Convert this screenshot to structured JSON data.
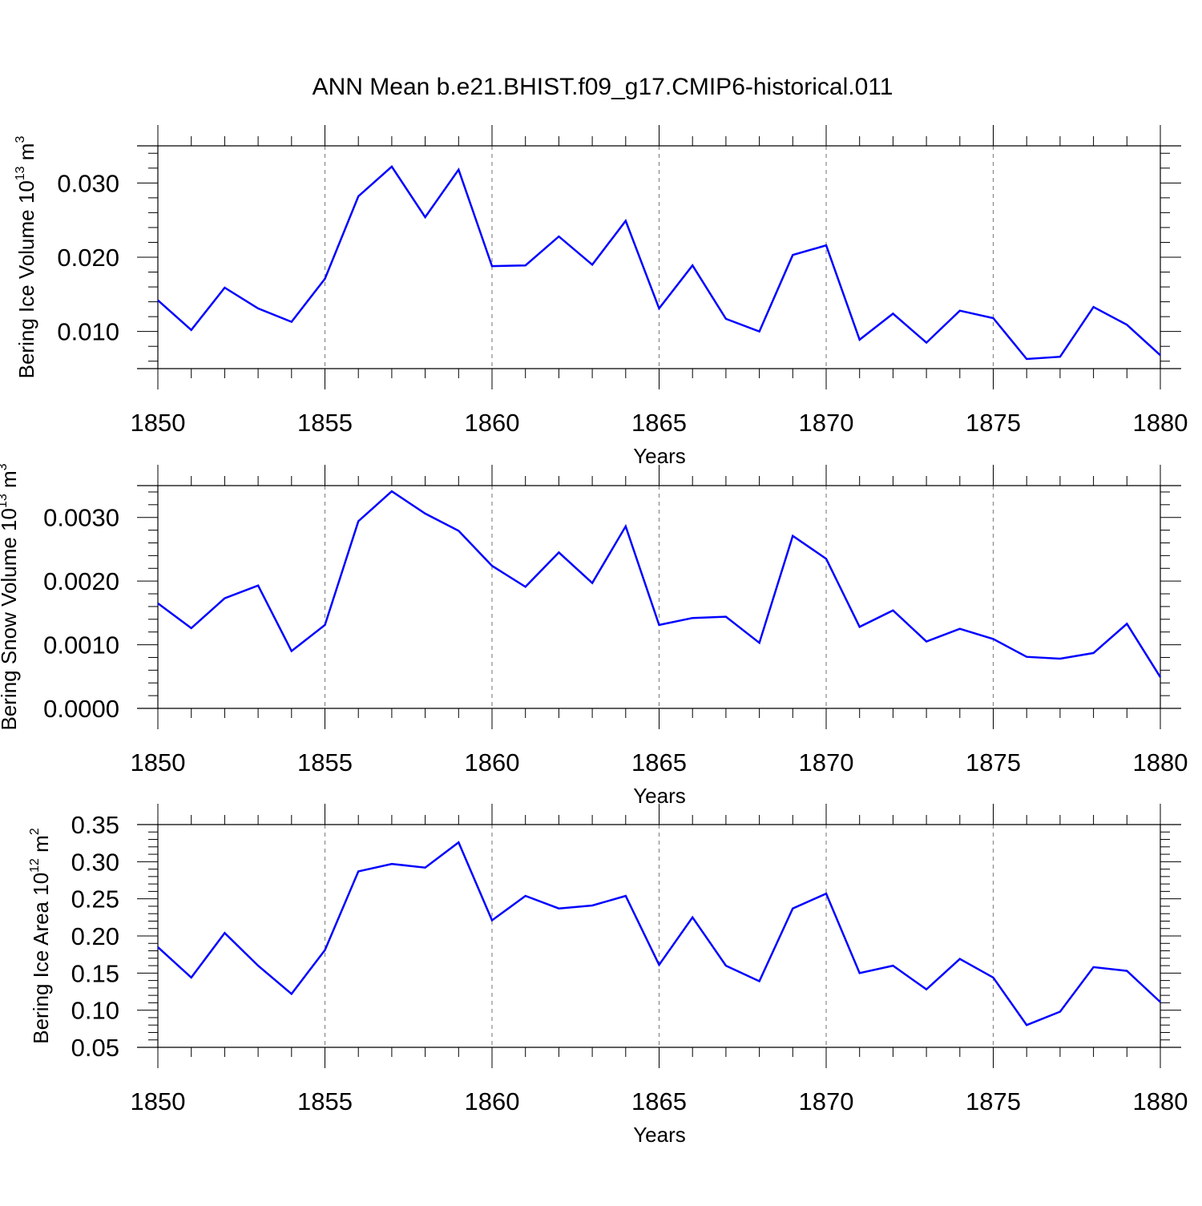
{
  "figure": {
    "title": "ANN Mean b.e21.BHIST.f09_g17.CMIP6-historical.011"
  },
  "colors": {
    "series": "#0000ff",
    "grid": "#888888",
    "frame": "#000000"
  },
  "chart_data": [
    {
      "type": "line",
      "title": "",
      "ylabel": "Bering Ice Volume 10",
      "ylabel_power": "13",
      "ylabel_unit": "m",
      "ylabel_unit_power": "3",
      "xlabel": "Years",
      "xlim": [
        1850,
        1880
      ],
      "ylim": [
        0.005,
        0.035
      ],
      "x_major_ticks": [
        1850,
        1855,
        1860,
        1865,
        1870,
        1875,
        1880
      ],
      "x_tick_labels": [
        "1850",
        "1855",
        "1860",
        "1865",
        "1870",
        "1875",
        "1880"
      ],
      "y_major_ticks": [
        0.01,
        0.02,
        0.03
      ],
      "y_tick_labels": [
        "0.010",
        "0.020",
        "0.030"
      ],
      "y_minor_step": 0.002,
      "vertical_grid": [
        1855,
        1860,
        1865,
        1870,
        1875
      ],
      "grid": "dashed vertical at labeled years",
      "x": [
        1850,
        1851,
        1852,
        1853,
        1854,
        1855,
        1856,
        1857,
        1858,
        1859,
        1860,
        1861,
        1862,
        1863,
        1864,
        1865,
        1866,
        1867,
        1868,
        1869,
        1870,
        1871,
        1872,
        1873,
        1874,
        1875,
        1876,
        1877,
        1878,
        1879,
        1880
      ],
      "series": [
        {
          "values": [
            0.0142,
            0.0102,
            0.0159,
            0.0131,
            0.0113,
            0.0171,
            0.0282,
            0.0322,
            0.0254,
            0.0318,
            0.0188,
            0.0189,
            0.0228,
            0.019,
            0.0249,
            0.0131,
            0.0189,
            0.0117,
            0.01,
            0.0203,
            0.0216,
            0.0089,
            0.0124,
            0.0085,
            0.0128,
            0.0118,
            0.0063,
            0.0066,
            0.0133,
            0.0109,
            0.0068
          ]
        }
      ]
    },
    {
      "type": "line",
      "title": "",
      "ylabel": "Bering Snow Volume 10",
      "ylabel_power": "13",
      "ylabel_unit": "m",
      "ylabel_unit_power": "3",
      "xlabel": "Years",
      "xlim": [
        1850,
        1880
      ],
      "ylim": [
        0.0,
        0.0035
      ],
      "x_major_ticks": [
        1850,
        1855,
        1860,
        1865,
        1870,
        1875,
        1880
      ],
      "x_tick_labels": [
        "1850",
        "1855",
        "1860",
        "1865",
        "1870",
        "1875",
        "1880"
      ],
      "y_major_ticks": [
        0.0,
        0.001,
        0.002,
        0.003
      ],
      "y_tick_labels": [
        "0.0000",
        "0.0010",
        "0.0020",
        "0.0030"
      ],
      "y_minor_step": 0.0002,
      "vertical_grid": [
        1855,
        1860,
        1865,
        1870,
        1875
      ],
      "grid": "dashed vertical at labeled years",
      "x": [
        1850,
        1851,
        1852,
        1853,
        1854,
        1855,
        1856,
        1857,
        1858,
        1859,
        1860,
        1861,
        1862,
        1863,
        1864,
        1865,
        1866,
        1867,
        1868,
        1869,
        1870,
        1871,
        1872,
        1873,
        1874,
        1875,
        1876,
        1877,
        1878,
        1879,
        1880
      ],
      "series": [
        {
          "values": [
            0.00165,
            0.00126,
            0.00173,
            0.00193,
            0.0009,
            0.00131,
            0.00294,
            0.00341,
            0.00306,
            0.00279,
            0.00224,
            0.00191,
            0.00245,
            0.00197,
            0.00286,
            0.00131,
            0.00142,
            0.00144,
            0.00103,
            0.00271,
            0.00235,
            0.00128,
            0.00154,
            0.00105,
            0.00125,
            0.00109,
            0.00081,
            0.00078,
            0.00087,
            0.00133,
            0.00049
          ]
        }
      ]
    },
    {
      "type": "line",
      "title": "",
      "ylabel": "Bering Ice Area 10",
      "ylabel_power": "12",
      "ylabel_unit": "m",
      "ylabel_unit_power": "2",
      "xlabel": "Years",
      "xlim": [
        1850,
        1880
      ],
      "ylim": [
        0.05,
        0.35
      ],
      "x_major_ticks": [
        1850,
        1855,
        1860,
        1865,
        1870,
        1875,
        1880
      ],
      "x_tick_labels": [
        "1850",
        "1855",
        "1860",
        "1865",
        "1870",
        "1875",
        "1880"
      ],
      "y_major_ticks": [
        0.05,
        0.1,
        0.15,
        0.2,
        0.25,
        0.3,
        0.35
      ],
      "y_tick_labels": [
        "0.05",
        "0.10",
        "0.15",
        "0.20",
        "0.25",
        "0.30",
        "0.35"
      ],
      "y_minor_step": 0.01,
      "vertical_grid": [
        1855,
        1860,
        1865,
        1870,
        1875
      ],
      "grid": "dashed vertical at labeled years",
      "x": [
        1850,
        1851,
        1852,
        1853,
        1854,
        1855,
        1856,
        1857,
        1858,
        1859,
        1860,
        1861,
        1862,
        1863,
        1864,
        1865,
        1866,
        1867,
        1868,
        1869,
        1870,
        1871,
        1872,
        1873,
        1874,
        1875,
        1876,
        1877,
        1878,
        1879,
        1880
      ],
      "series": [
        {
          "values": [
            0.185,
            0.144,
            0.204,
            0.16,
            0.122,
            0.181,
            0.287,
            0.297,
            0.292,
            0.326,
            0.221,
            0.254,
            0.237,
            0.241,
            0.254,
            0.161,
            0.225,
            0.16,
            0.139,
            0.237,
            0.257,
            0.15,
            0.16,
            0.128,
            0.169,
            0.144,
            0.08,
            0.098,
            0.158,
            0.153,
            0.111
          ]
        }
      ]
    }
  ]
}
